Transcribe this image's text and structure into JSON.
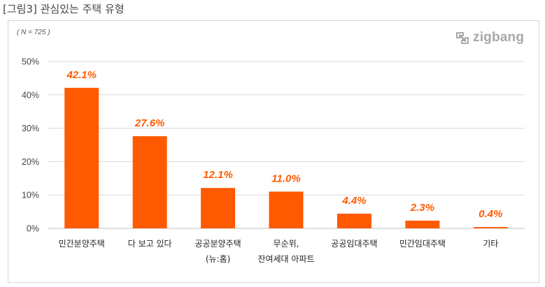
{
  "figure": {
    "caption": "[그림3] 관심있는 주택 유형",
    "sample_note": "( N = 725 )",
    "logo_text": "zigbang",
    "logo_icon": "zigbang-logo-icon"
  },
  "colors": {
    "bar": "#ff5a00",
    "label": "#ff5a00",
    "grid": "#d9d9d9",
    "axis": "#bfbfbf"
  },
  "chart_data": {
    "type": "bar",
    "title": "",
    "xlabel": "",
    "ylabel": "",
    "ylim": [
      0,
      50
    ],
    "yticks": [
      0,
      10,
      20,
      30,
      40,
      50
    ],
    "ytick_labels": [
      "0%",
      "10%",
      "20%",
      "30%",
      "40%",
      "50%"
    ],
    "grid": true,
    "categories": [
      [
        "민간분양주택"
      ],
      [
        "다 보고 있다"
      ],
      [
        "공공분양주택",
        "(뉴:홈)"
      ],
      [
        "무순위,",
        "잔여세대 아파트"
      ],
      [
        "공공임대주택"
      ],
      [
        "민간임대주택"
      ],
      [
        "기타"
      ]
    ],
    "values": [
      42.1,
      27.6,
      12.1,
      11.0,
      4.4,
      2.3,
      0.4
    ],
    "data_labels": [
      "42.1%",
      "27.6%",
      "12.1%",
      "11.0%",
      "4.4%",
      "2.3%",
      "0.4%"
    ]
  }
}
